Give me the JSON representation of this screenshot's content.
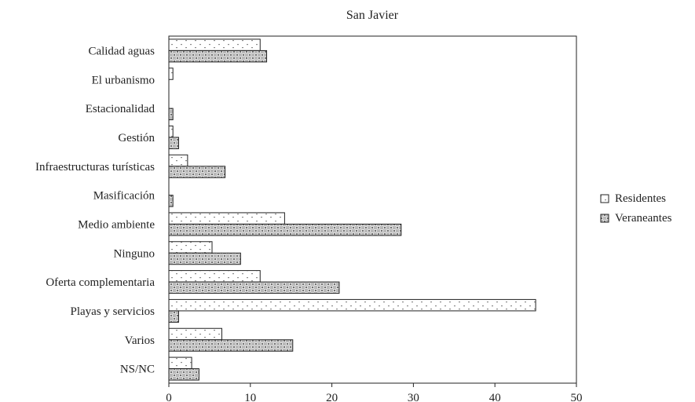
{
  "chart_data": {
    "type": "bar",
    "orientation": "horizontal",
    "title": "San Javier",
    "xlabel": "",
    "ylabel": "",
    "xlim": [
      0,
      50
    ],
    "xticks": [
      0,
      10,
      20,
      30,
      40,
      50
    ],
    "grid": false,
    "legend_position": "right",
    "categories": [
      "Calidad aguas",
      "El urbanismo",
      "Estacionalidad",
      "Gestión",
      "Infraestructuras turísticas",
      "Masificación",
      "Medio ambiente",
      "Ninguno",
      "Oferta complementaria",
      "Playas y servicios",
      "Varios",
      "NS/NC"
    ],
    "series": [
      {
        "name": "Residentes",
        "fill": "#ffffff",
        "pattern": "dots",
        "values": [
          11.2,
          0.5,
          0,
          0.5,
          2.3,
          0,
          14.2,
          5.3,
          11.2,
          45.0,
          6.5,
          2.8
        ]
      },
      {
        "name": "Veraneantes",
        "fill": "#bdbdbd",
        "pattern": "checker",
        "values": [
          12.0,
          0,
          0.5,
          1.2,
          6.9,
          0.5,
          28.5,
          8.8,
          20.9,
          1.2,
          15.2,
          3.7
        ]
      }
    ]
  }
}
